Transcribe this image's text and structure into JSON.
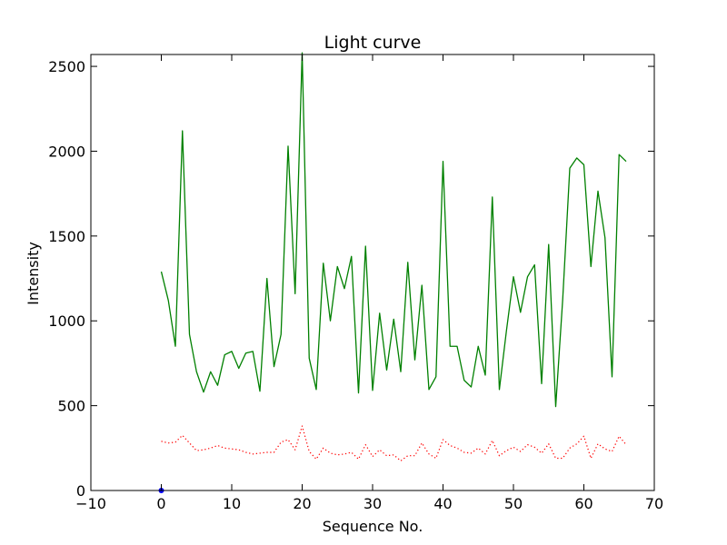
{
  "chart_data": {
    "type": "line",
    "title": "Light curve",
    "xlabel": "Sequence No.",
    "ylabel": "Intensity",
    "xlim": [
      -10,
      70
    ],
    "ylim": [
      0,
      2570
    ],
    "xticks": [
      -10,
      0,
      10,
      20,
      30,
      40,
      50,
      60,
      70
    ],
    "yticks": [
      0,
      500,
      1000,
      1500,
      2000,
      2500
    ],
    "xtick_labels": [
      "−10",
      "0",
      "10",
      "20",
      "30",
      "40",
      "50",
      "60",
      "70"
    ],
    "ytick_labels": [
      "0",
      "500",
      "1000",
      "1500",
      "2000",
      "2500"
    ],
    "grid": false,
    "series": [
      {
        "style": "solid",
        "color": "#008000",
        "x": [
          0,
          1,
          2,
          3,
          4,
          5,
          6,
          7,
          8,
          9,
          10,
          11,
          12,
          13,
          14,
          15,
          16,
          17,
          18,
          19,
          20,
          21,
          22,
          23,
          24,
          25,
          26,
          27,
          28,
          29,
          30,
          31,
          32,
          33,
          34,
          35,
          36,
          37,
          38,
          39,
          40,
          41,
          42,
          43,
          44,
          45,
          46,
          47,
          48,
          49,
          50,
          51,
          52,
          53,
          54,
          55,
          56,
          57,
          58,
          59,
          60,
          61,
          62,
          63,
          64,
          65,
          66
        ],
        "values": [
          1290,
          1120,
          850,
          2120,
          920,
          700,
          580,
          700,
          620,
          800,
          820,
          720,
          810,
          820,
          585,
          1250,
          730,
          920,
          2030,
          1160,
          2580,
          780,
          595,
          1340,
          1000,
          1320,
          1190,
          1380,
          575,
          1440,
          590,
          1045,
          710,
          1010,
          700,
          1345,
          770,
          1210,
          595,
          670,
          1940,
          850,
          850,
          650,
          610,
          850,
          680,
          1730,
          595,
          940,
          1260,
          1050,
          1260,
          1330,
          630,
          1450,
          495,
          1130,
          1900,
          1960,
          1920,
          1320,
          1765,
          1490,
          670,
          1980,
          1940
        ]
      },
      {
        "style": "dotted",
        "color": "#ff0000",
        "x": [
          0,
          1,
          2,
          3,
          4,
          5,
          6,
          7,
          8,
          9,
          10,
          11,
          12,
          13,
          14,
          15,
          16,
          17,
          18,
          19,
          20,
          21,
          22,
          23,
          24,
          25,
          26,
          27,
          28,
          29,
          30,
          31,
          32,
          33,
          34,
          35,
          36,
          37,
          38,
          39,
          40,
          41,
          42,
          43,
          44,
          45,
          46,
          47,
          48,
          49,
          50,
          51,
          52,
          53,
          54,
          55,
          56,
          57,
          58,
          59,
          60,
          61,
          62,
          63,
          64,
          65,
          66
        ],
        "values": [
          290,
          280,
          285,
          325,
          280,
          235,
          240,
          250,
          265,
          250,
          245,
          240,
          225,
          215,
          220,
          225,
          225,
          285,
          300,
          240,
          380,
          230,
          185,
          250,
          220,
          210,
          215,
          225,
          185,
          270,
          200,
          240,
          205,
          210,
          175,
          205,
          205,
          280,
          215,
          190,
          300,
          265,
          250,
          225,
          220,
          250,
          215,
          295,
          205,
          235,
          255,
          230,
          270,
          255,
          220,
          275,
          190,
          190,
          250,
          275,
          320,
          190,
          275,
          245,
          230,
          320,
          270
        ]
      },
      {
        "style": "markers",
        "color": "#0000ff",
        "x": [
          0
        ],
        "values": [
          0
        ]
      }
    ]
  }
}
